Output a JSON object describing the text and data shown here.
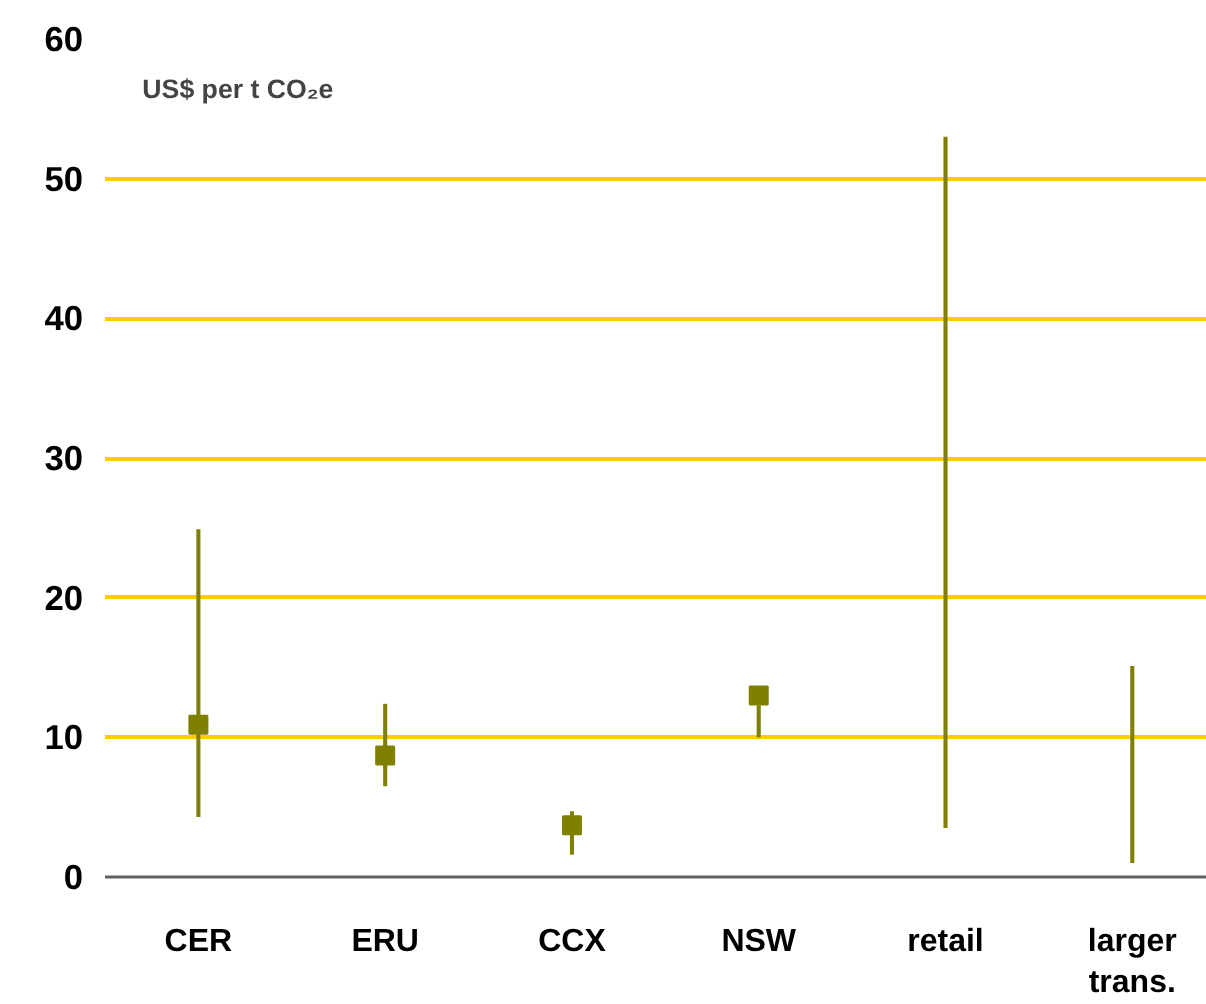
{
  "chart_data": {
    "type": "bar",
    "ylabel": "US$ per t CO₂e",
    "categories": [
      "CER",
      "ERU",
      "CCX",
      "NSW",
      "retail",
      "larger trans."
    ],
    "series": [
      {
        "color": "#808000",
        "base": [
          4.3,
          6.5,
          1.6,
          10.0,
          3.5,
          1.0
        ],
        "values": [
          20.6,
          5.9,
          3.1,
          2.3,
          49.5,
          14.1
        ]
      },
      {
        "type": "scatter",
        "color": "#808000",
        "values": [
          10.9,
          8.7,
          3.7,
          13.0,
          null,
          null
        ]
      }
    ],
    "marker": "square",
    "ylim": [
      0,
      60
    ],
    "yticks": [
      0,
      10,
      20,
      30,
      40,
      50,
      60
    ],
    "grid": "y"
  }
}
